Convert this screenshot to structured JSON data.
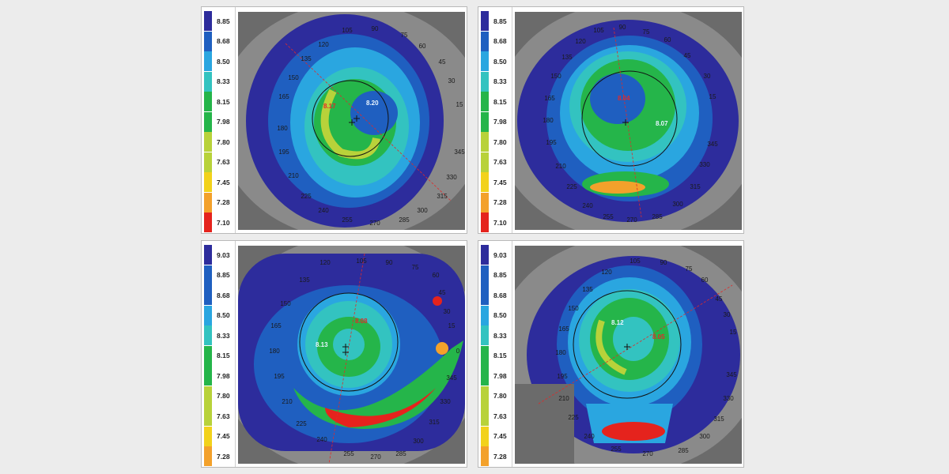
{
  "colors": {
    "dark_blue": "#2d2c9c",
    "blue": "#1f5fc0",
    "sky": "#2aa6e0",
    "cyan": "#33c3c0",
    "green": "#25b54a",
    "yellow_green": "#b8d23a",
    "yellow": "#f2d21b",
    "orange": "#f3a12b",
    "red": "#e5231d",
    "marker_red": "#e02a2a"
  },
  "panels": [
    {
      "legend": [
        "8.85",
        "8.68",
        "8.50",
        "8.33",
        "8.15",
        "7.98",
        "7.80",
        "7.63",
        "7.45",
        "7.28",
        "7.10"
      ],
      "degrees": [
        "90",
        "105",
        "75",
        "120",
        "60",
        "135",
        "45",
        "150",
        "30",
        "165",
        "15",
        "180",
        "195",
        "345",
        "210",
        "330",
        "225",
        "315",
        "240",
        "300",
        "255",
        "285",
        "270"
      ],
      "readings": [
        {
          "text": "8.17",
          "color": "red"
        },
        {
          "text": "8.20",
          "color": "white"
        }
      ]
    },
    {
      "legend": [
        "8.85",
        "8.68",
        "8.50",
        "8.33",
        "8.15",
        "7.98",
        "7.80",
        "7.63",
        "7.45",
        "7.28",
        "7.10"
      ],
      "degrees": [
        "90",
        "105",
        "75",
        "120",
        "60",
        "135",
        "45",
        "150",
        "30",
        "165",
        "15",
        "180",
        "195",
        "345",
        "210",
        "330",
        "225",
        "315",
        "240",
        "300",
        "255",
        "285",
        "270"
      ],
      "readings": [
        {
          "text": "8.04",
          "color": "red"
        },
        {
          "text": "8.07",
          "color": "white"
        }
      ]
    },
    {
      "legend": [
        "9.03",
        "8.85",
        "8.68",
        "8.50",
        "8.33",
        "8.15",
        "7.98",
        "7.80",
        "7.63",
        "7.45",
        "7.28"
      ],
      "degrees": [
        "90",
        "105",
        "75",
        "120",
        "60",
        "135",
        "45",
        "150",
        "30",
        "165",
        "15",
        "180",
        "0",
        "195",
        "345",
        "210",
        "330",
        "225",
        "315",
        "240",
        "300",
        "255",
        "285",
        "270"
      ],
      "readings": [
        {
          "text": "8.08",
          "color": "red"
        },
        {
          "text": "8.13",
          "color": "white"
        }
      ]
    },
    {
      "legend": [
        "9.03",
        "8.85",
        "8.68",
        "8.50",
        "8.33",
        "8.15",
        "7.98",
        "7.80",
        "7.63",
        "7.45",
        "7.28"
      ],
      "degrees": [
        "90",
        "105",
        "75",
        "120",
        "60",
        "135",
        "45",
        "150",
        "30",
        "165",
        "15",
        "180",
        "195",
        "345",
        "210",
        "330",
        "225",
        "315",
        "240",
        "300",
        "255",
        "285",
        "270"
      ],
      "readings": [
        {
          "text": "8.05",
          "color": "red"
        },
        {
          "text": "8.12",
          "color": "white"
        }
      ]
    }
  ]
}
